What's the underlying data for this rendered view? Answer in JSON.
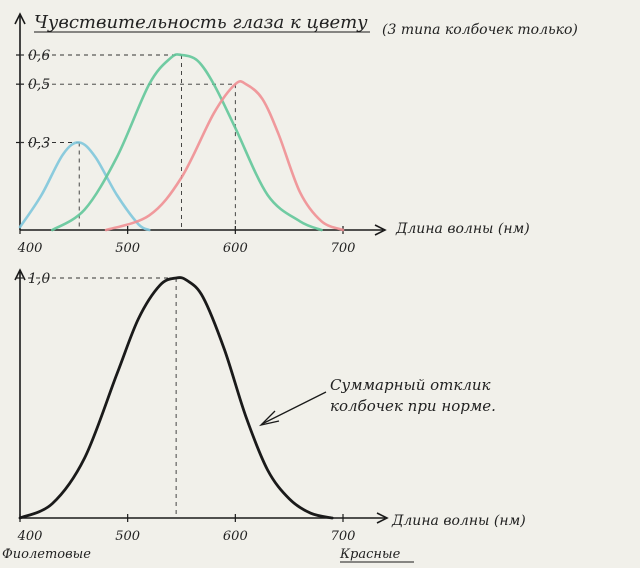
{
  "page": {
    "title": "Чувствительность глаза к цвету",
    "title_note": "(3 типа колбочек только)",
    "annotation_line1": "Суммарный отклик",
    "annotation_line2": "колбочек при норме.",
    "label_violet": "Фиолетовые",
    "label_red": "Красные"
  },
  "colors": {
    "ink": "#1a1a1a",
    "blue": "#7fc7dc",
    "green": "#62c79a",
    "red": "#ef8f94",
    "paper": "#f1f0ea"
  },
  "chart_data": [
    {
      "type": "line",
      "title": "Чувствительность глаза к цвету",
      "xlabel": "Длина волны (нм)",
      "ylabel": "",
      "xlim": [
        400,
        700
      ],
      "ylim": [
        0,
        0.6
      ],
      "xticks": [
        "400",
        "500",
        "600",
        "700"
      ],
      "yticks": [
        {
          "value": 0.3,
          "label": "0,3"
        },
        {
          "value": 0.5,
          "label": "0,5"
        },
        {
          "value": 0.6,
          "label": "0,6"
        }
      ],
      "grid": false,
      "series": [
        {
          "color": "#7fc7dc",
          "x": [
            400,
            420,
            440,
            455,
            470,
            490,
            510,
            520
          ],
          "y": [
            0.01,
            0.12,
            0.26,
            0.3,
            0.25,
            0.12,
            0.02,
            0.0
          ]
        },
        {
          "color": "#62c79a",
          "x": [
            430,
            460,
            490,
            520,
            540,
            550,
            565,
            580,
            600,
            630,
            660,
            680
          ],
          "y": [
            0.0,
            0.07,
            0.25,
            0.5,
            0.59,
            0.6,
            0.58,
            0.5,
            0.35,
            0.12,
            0.03,
            0.0
          ]
        },
        {
          "color": "#ef8f94",
          "x": [
            480,
            520,
            550,
            580,
            600,
            610,
            625,
            640,
            660,
            680,
            700
          ],
          "y": [
            0.0,
            0.05,
            0.18,
            0.4,
            0.5,
            0.5,
            0.45,
            0.33,
            0.13,
            0.03,
            0.0
          ]
        }
      ]
    },
    {
      "type": "line",
      "title": "",
      "xlabel": "Длина волны (нм)",
      "ylabel": "",
      "xlim": [
        400,
        700
      ],
      "ylim": [
        0,
        1.0
      ],
      "xticks": [
        "400",
        "500",
        "600",
        "700"
      ],
      "yticks": [
        {
          "value": 1.0,
          "label": "1,0"
        }
      ],
      "grid": false,
      "series": [
        {
          "color": "#1a1a1a",
          "x": [
            400,
            430,
            460,
            490,
            510,
            530,
            545,
            555,
            570,
            590,
            610,
            630,
            650,
            670,
            690
          ],
          "y": [
            0.0,
            0.06,
            0.25,
            0.6,
            0.83,
            0.97,
            1.0,
            0.99,
            0.92,
            0.7,
            0.42,
            0.2,
            0.08,
            0.02,
            0.0
          ]
        }
      ]
    }
  ]
}
